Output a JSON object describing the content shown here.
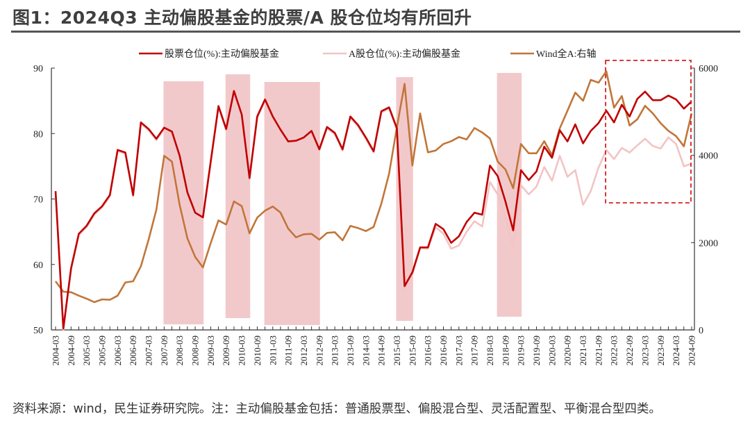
{
  "title": "图1：2024Q3 主动偏股基金的股票/A 股仓位均有所回升",
  "footer": "资料来源：wind，民生证券研究院。注：主动偏股基金包括：普通股票型、偏股混合型、灵活配置型、平衡混合型四类。",
  "chart_data": {
    "type": "line",
    "x": [
      "2004-03",
      "2004-06",
      "2004-09",
      "2004-12",
      "2005-03",
      "2005-06",
      "2005-09",
      "2005-12",
      "2006-03",
      "2006-06",
      "2006-09",
      "2006-12",
      "2007-03",
      "2007-06",
      "2007-09",
      "2007-12",
      "2008-03",
      "2008-06",
      "2008-09",
      "2008-12",
      "2009-03",
      "2009-06",
      "2009-09",
      "2009-12",
      "2010-03",
      "2010-06",
      "2010-09",
      "2010-12",
      "2011-03",
      "2011-06",
      "2011-09",
      "2011-12",
      "2012-03",
      "2012-06",
      "2012-09",
      "2012-12",
      "2013-03",
      "2013-06",
      "2013-09",
      "2013-12",
      "2014-03",
      "2014-06",
      "2014-09",
      "2014-12",
      "2015-03",
      "2015-06",
      "2015-09",
      "2015-12",
      "2016-03",
      "2016-06",
      "2016-09",
      "2016-12",
      "2017-03",
      "2017-06",
      "2017-09",
      "2017-12",
      "2018-03",
      "2018-06",
      "2018-09",
      "2018-12",
      "2019-03",
      "2019-06",
      "2019-09",
      "2019-12",
      "2020-03",
      "2020-06",
      "2020-09",
      "2020-12",
      "2021-03",
      "2021-06",
      "2021-09",
      "2021-12",
      "2022-03",
      "2022-06",
      "2022-09",
      "2022-12",
      "2023-03",
      "2023-06",
      "2023-09",
      "2023-12",
      "2024-03",
      "2024-06",
      "2024-09"
    ],
    "x_tick_labels_every": 2,
    "series": [
      {
        "name": "股票仓位(%):主动偏股基金",
        "axis": "left",
        "color": "#c00000",
        "values": [
          71.2,
          50.2,
          59.4,
          64.7,
          65.9,
          67.8,
          68.9,
          70.6,
          77.5,
          77.1,
          70.6,
          81.7,
          80.7,
          79.2,
          80.9,
          80.3,
          76.6,
          71,
          67.9,
          67.2,
          75.7,
          84.2,
          80.7,
          86.5,
          82.9,
          73.2,
          82.6,
          85.2,
          82.6,
          80.6,
          78.8,
          78.9,
          79.4,
          80.4,
          77.6,
          81,
          80.1,
          77.6,
          82.6,
          81.3,
          79.4,
          77.3,
          83.4,
          84,
          80.8,
          56.7,
          58.8,
          62.6,
          62.6,
          66.2,
          65.4,
          63.3,
          64.3,
          66.5,
          67.9,
          67.6,
          75.1,
          73.5,
          69.6,
          65.2,
          74.4,
          72.9,
          74.2,
          78,
          76.3,
          80.5,
          78.8,
          81.4,
          78.5,
          80.4,
          81.6,
          83.5,
          81.7,
          84.4,
          82.6,
          85.3,
          86.4,
          85.1,
          85.1,
          85.8,
          85.2,
          83.8,
          84.9
        ]
      },
      {
        "name": "A股仓位(%):主动偏股基金",
        "axis": "left",
        "color": "#f2c4c4",
        "values": [
          71.1,
          50,
          59.2,
          64.5,
          65.7,
          67.6,
          68.7,
          70.4,
          77.3,
          76.9,
          70.4,
          81.5,
          80.5,
          79,
          80.7,
          80,
          76.3,
          70.7,
          67.7,
          67,
          75.5,
          84,
          80.5,
          86.3,
          82.7,
          73,
          82.4,
          85,
          82.4,
          80.4,
          78.6,
          78.7,
          79.2,
          80.2,
          77.4,
          80.8,
          79.9,
          77.4,
          82.4,
          81.1,
          79.2,
          77.1,
          83.2,
          83.8,
          80.6,
          56.2,
          58.5,
          62.5,
          62.4,
          65.7,
          64.7,
          62.4,
          62.9,
          65,
          66.6,
          65.8,
          72.6,
          70.7,
          67.2,
          62.5,
          72.1,
          70.7,
          71.9,
          74.9,
          72.8,
          76.6,
          73.4,
          74.4,
          69.1,
          71.2,
          74.8,
          77.5,
          76.1,
          77.8,
          77.1,
          78.2,
          79.2,
          78.1,
          77.7,
          79.4,
          78.4,
          75,
          75.4
        ]
      },
      {
        "name": "Wind全A:右轴",
        "axis": "right",
        "color": "#c0763a",
        "values": [
          1114,
          875,
          864,
          785,
          716,
          637,
          700,
          690,
          785,
          1088,
          1114,
          1459,
          2069,
          2758,
          3990,
          3857,
          2865,
          2096,
          1671,
          1432,
          1989,
          2510,
          2414,
          2944,
          2838,
          2212,
          2573,
          2732,
          2828,
          2690,
          2319,
          2122,
          2191,
          2201,
          2069,
          2223,
          2239,
          2053,
          2382,
          2334,
          2265,
          2360,
          2892,
          3581,
          4642,
          5639,
          3767,
          4960,
          4069,
          4111,
          4260,
          4324,
          4420,
          4366,
          4627,
          4525,
          4388,
          3857,
          3676,
          3247,
          4260,
          4047,
          4047,
          4324,
          4006,
          4615,
          5024,
          5438,
          5252,
          5729,
          5666,
          5925,
          5093,
          5358,
          4684,
          4827,
          5136,
          4960,
          4738,
          4563,
          4440,
          4206,
          4960
        ]
      }
    ],
    "y_left": {
      "range": [
        50,
        90
      ],
      "ticks": [
        "50",
        "60",
        "70",
        "80",
        "90"
      ]
    },
    "y_right": {
      "range": [
        0,
        6000
      ],
      "ticks": [
        "0",
        "2000",
        "4000",
        "6000"
      ]
    },
    "shaded_periods": [
      [
        "2007-09",
        "2008-12"
      ],
      [
        "2009-09",
        "2010-06"
      ],
      [
        "2010-12",
        "2012-09"
      ],
      [
        "2015-03",
        "2015-09"
      ],
      [
        "2018-06",
        "2019-03"
      ]
    ],
    "shade_color": "#f2c9cb",
    "highlight_box": {
      "from": "2021-12",
      "to": "2024-09",
      "color": "#d42020"
    },
    "legend_position": "top",
    "grid": false
  }
}
